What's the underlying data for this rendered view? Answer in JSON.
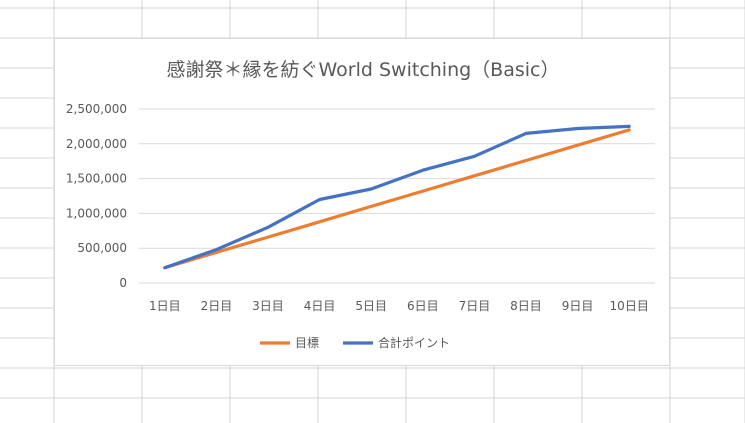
{
  "chart_data": {
    "type": "line",
    "title": "感謝祭＊縁を紡ぐWorld Switching（Basic）",
    "categories": [
      "1日目",
      "2日目",
      "3日目",
      "4日目",
      "5日目",
      "6日目",
      "7日目",
      "8日目",
      "9日目",
      "10日目"
    ],
    "y_ticks": [
      "0",
      "500,000",
      "1,000,000",
      "1,500,000",
      "2,000,000",
      "2,500,000"
    ],
    "ylim": [
      0,
      2500000
    ],
    "grid": true,
    "legend_position": "bottom",
    "series": [
      {
        "name": "目標",
        "color": "#ed7d31",
        "values": [
          220000,
          440000,
          660000,
          880000,
          1100000,
          1320000,
          1540000,
          1760000,
          1980000,
          2200000
        ]
      },
      {
        "name": "合計ポイント",
        "color": "#4472c4",
        "values": [
          220000,
          480000,
          800000,
          1200000,
          1350000,
          1620000,
          1820000,
          2150000,
          2220000,
          2250000
        ]
      }
    ]
  }
}
